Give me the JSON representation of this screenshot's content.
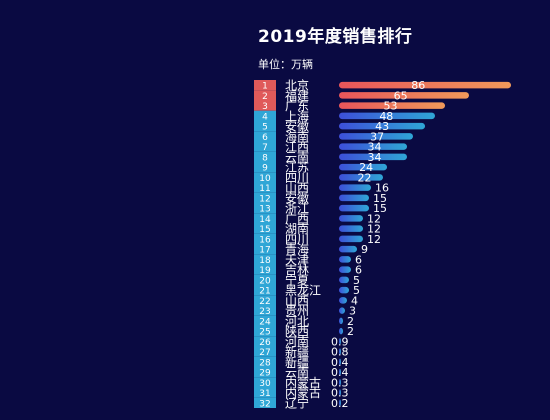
{
  "chart_data": {
    "type": "bar",
    "orientation": "horizontal",
    "title": "2019年度销售排行",
    "subtitle": "单位：万辆",
    "categories": [
      "北京",
      "福建",
      "广东",
      "上海",
      "安徽",
      "海南",
      "江西",
      "云南",
      "江苏",
      "四川",
      "山西",
      "安徽",
      "浙江",
      "广西",
      "湖南",
      "四川",
      "青海",
      "天津",
      "吉林",
      "宁夏",
      "黑龙江",
      "山西",
      "贵州",
      "河北",
      "陕西",
      "河南",
      "新疆",
      "新疆",
      "云南",
      "内蒙古",
      "内蒙古",
      "辽宁"
    ],
    "ranks": [
      "1",
      "2",
      "3",
      "4",
      "5",
      "6",
      "7",
      "8",
      "9",
      "10",
      "11",
      "12",
      "13",
      "14",
      "15",
      "16",
      "17",
      "18",
      "19",
      "20",
      "21",
      "22",
      "23",
      "24",
      "25",
      "26",
      "27",
      "28",
      "29",
      "30",
      "31",
      "32"
    ],
    "values": [
      86,
      65,
      53,
      48,
      43,
      37,
      34,
      34,
      24,
      22,
      16,
      15,
      15,
      12,
      12,
      12,
      9,
      6,
      6,
      5,
      5,
      4,
      3,
      2,
      2,
      0.9,
      0.8,
      0.4,
      0.4,
      0.3,
      0.3,
      0.2
    ],
    "value_labels": [
      "86",
      "65",
      "53",
      "48",
      "43",
      "37",
      "34",
      "34",
      "24",
      "22",
      "16",
      "15",
      "15",
      "12",
      "12",
      "12",
      "9",
      "6",
      "6",
      "5",
      "5",
      "4",
      "3",
      "2",
      "2",
      "0.9",
      "0.8",
      "0.4",
      "0.4",
      "0.3",
      "0.3",
      "0.2"
    ],
    "xlim": [
      0,
      90
    ],
    "colors": {
      "top3_rank_bg": "#e05a5a",
      "rank_bg": "#2fa6d6",
      "top3_bar_start": "#e8555a",
      "top3_bar_end": "#f09a5a",
      "bar_start": "#3d4fd9",
      "bar_end": "#2fa6d6",
      "text": "#ffffff"
    }
  }
}
